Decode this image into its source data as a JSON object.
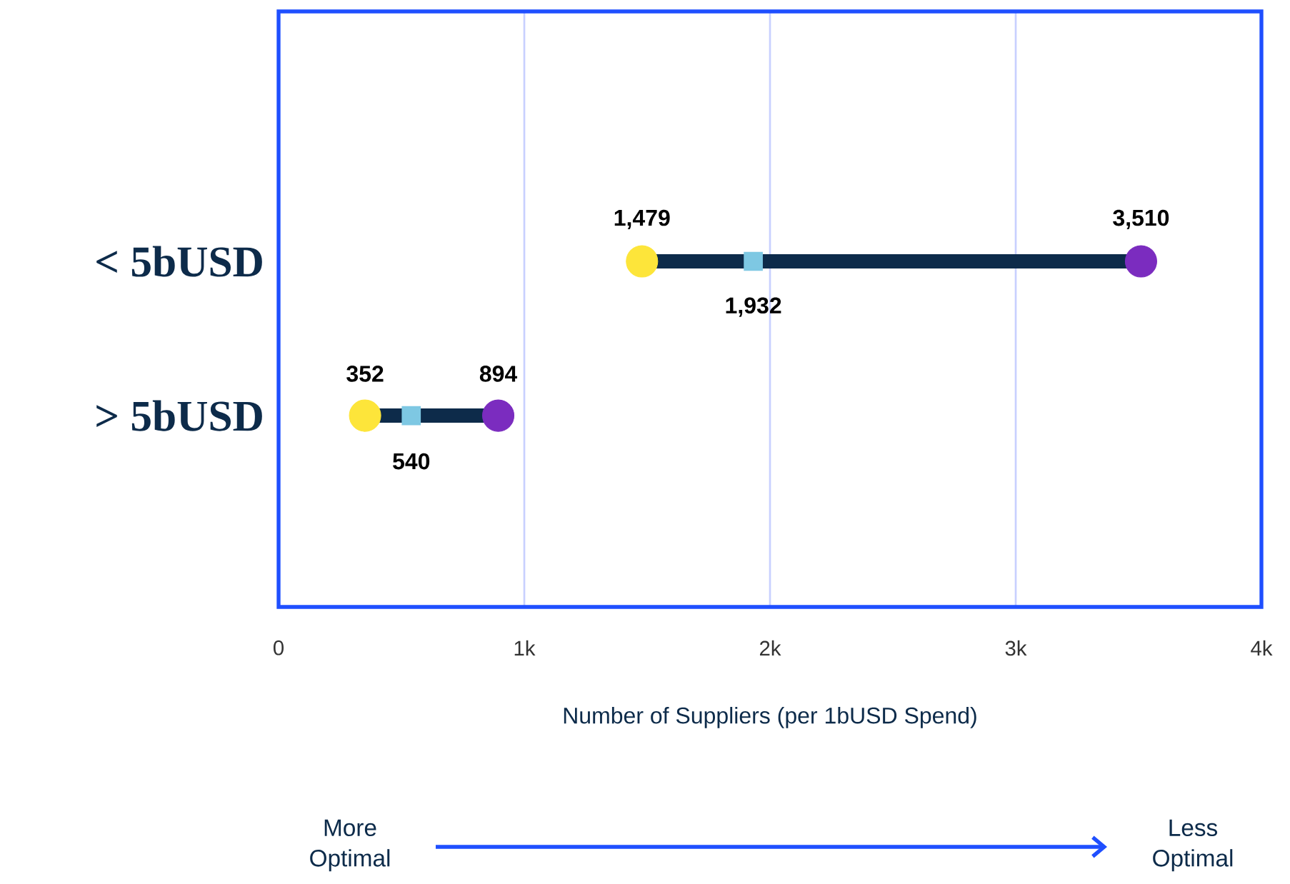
{
  "chart_data": {
    "type": "scatter",
    "orientation": "horizontal",
    "categories": [
      "< 5bUSD",
      "> 5bUSD"
    ],
    "xlabel": "Number of Suppliers (per 1bUSD Spend)",
    "xlim": [
      0,
      4000
    ],
    "xticks": [
      0,
      {
        "value": 1000,
        "label": "1k"
      },
      {
        "value": 2000,
        "label": "2k"
      },
      {
        "value": 3000,
        "label": "3k"
      },
      {
        "value": 4000,
        "label": "4k"
      }
    ],
    "grid": "x",
    "series": [
      {
        "color": "#fde53a",
        "values": [
          1479,
          352
        ],
        "value_labels": [
          "1,479",
          "352"
        ]
      },
      {
        "color": "#7b2cbf",
        "values": [
          3510,
          894
        ],
        "value_labels": [
          "3,510",
          "894"
        ]
      },
      {
        "color": "#7ec8e3",
        "marker": "square",
        "values": [
          1932,
          540
        ],
        "value_labels": [
          "1,932",
          "540"
        ]
      }
    ],
    "annotations": [
      "More Optimal",
      "Less Optimal"
    ]
  }
}
